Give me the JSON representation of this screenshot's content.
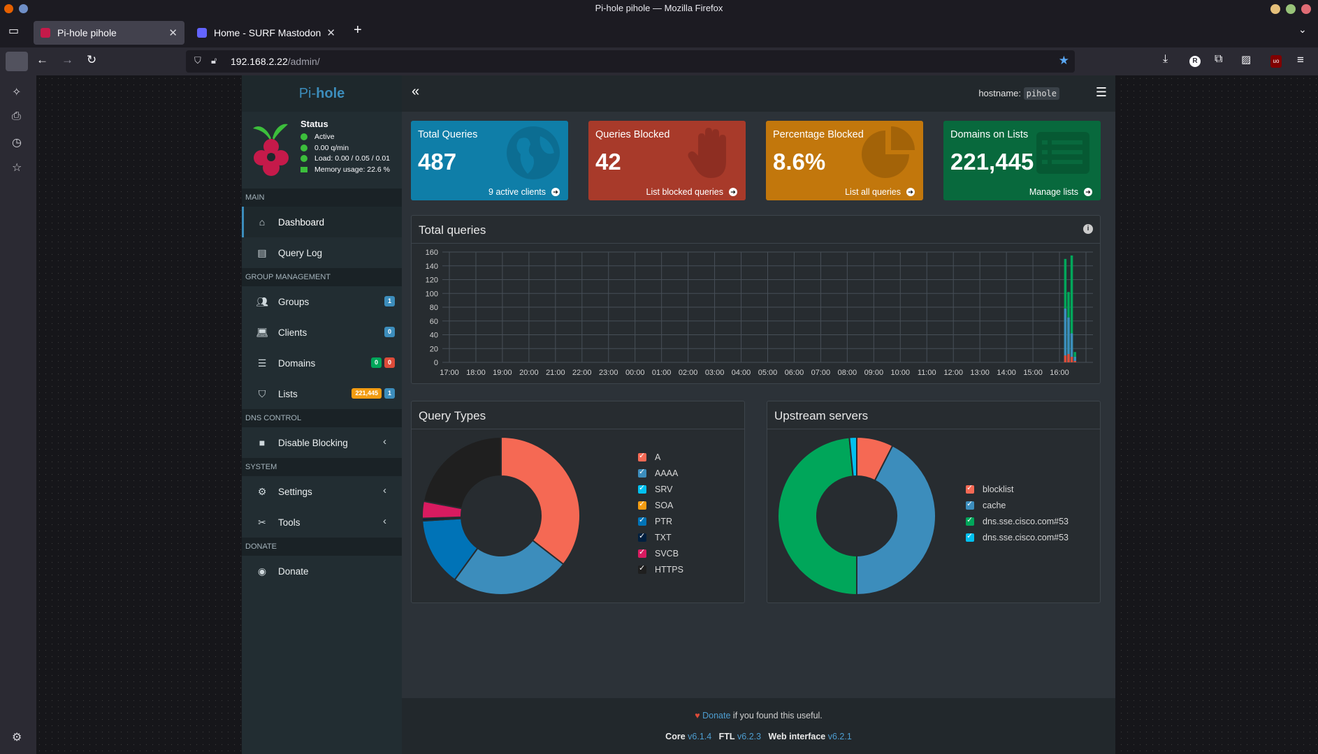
{
  "window": {
    "title": "Pi-hole pihole — Mozilla Firefox"
  },
  "tabs": [
    {
      "label": "Pi-hole pihole"
    },
    {
      "label": "Home - SURF Mastodon"
    }
  ],
  "urlbar": {
    "host": "192.168.2.22",
    "path": "/admin/"
  },
  "sidebar": {
    "brand_a": "Pi-",
    "brand_b": "hole",
    "status": {
      "title": "Status",
      "active": "Active",
      "rate": "0.00 q/min",
      "load": "Load: 0.00 / 0.05 / 0.01",
      "memory": "Memory usage: 22.6 %"
    },
    "sections": {
      "main": "MAIN",
      "group": "GROUP MANAGEMENT",
      "dns": "DNS CONTROL",
      "system": "SYSTEM",
      "donate": "DONATE"
    },
    "items": {
      "dashboard": "Dashboard",
      "querylog": "Query Log",
      "groups": "Groups",
      "clients": "Clients",
      "domains": "Domains",
      "lists": "Lists",
      "disable": "Disable Blocking",
      "settings": "Settings",
      "tools": "Tools",
      "donate": "Donate"
    },
    "badges": {
      "groups": "1",
      "clients": "0",
      "domains_allow": "0",
      "domains_deny": "0",
      "lists_domains": "221,445",
      "lists_count": "1"
    }
  },
  "topbar": {
    "hostname_label": "hostname:",
    "hostname": "pihole"
  },
  "stats": [
    {
      "title": "Total Queries",
      "value": "487",
      "link": "9 active clients",
      "color": "#00a7d0"
    },
    {
      "title": "Queries Blocked",
      "value": "42",
      "link": "List blocked queries",
      "color": "#dd4b39"
    },
    {
      "title": "Percentage Blocked",
      "value": "8.6%",
      "link": "List all queries",
      "color": "#f39c12"
    },
    {
      "title": "Domains on Lists",
      "value": "221,445",
      "link": "Manage lists",
      "color": "#00a65a"
    }
  ],
  "total_queries_panel": {
    "title": "Total queries"
  },
  "query_types_panel": {
    "title": "Query Types"
  },
  "upstream_panel": {
    "title": "Upstream servers"
  },
  "chart_data": [
    {
      "type": "bar",
      "title": "Total queries",
      "x": [
        "17:00",
        "18:00",
        "19:00",
        "20:00",
        "21:00",
        "22:00",
        "23:00",
        "00:00",
        "01:00",
        "02:00",
        "03:00",
        "04:00",
        "05:00",
        "06:00",
        "07:00",
        "08:00",
        "09:00",
        "10:00",
        "11:00",
        "12:00",
        "13:00",
        "14:00",
        "15:00",
        "16:00"
      ],
      "ylim": [
        0,
        160
      ],
      "yticks": [
        0,
        20,
        40,
        60,
        80,
        100,
        120,
        140,
        160
      ],
      "grid": true,
      "series": [
        {
          "values_last_bins": [
            0,
            150,
            102,
            155,
            15
          ],
          "color": "#00a65a"
        },
        {
          "values_last_bins": [
            0,
            78,
            65,
            42,
            8
          ],
          "color": "#3c8dbc"
        },
        {
          "values_last_bins": [
            0,
            10,
            12,
            8,
            2
          ],
          "color": "#dd4b39"
        }
      ]
    },
    {
      "type": "pie",
      "title": "Query Types",
      "labels": [
        "A",
        "AAAA",
        "SRV",
        "SOA",
        "PTR",
        "TXT",
        "SVCB",
        "HTTPS"
      ],
      "colors": [
        "#f56954",
        "#3c8dbc",
        "#00c0ef",
        "#f39c12",
        "#0073b7",
        "#001f3f",
        "#d81b60",
        "#1f1f1f"
      ],
      "values": [
        35.5,
        24.5,
        0,
        0,
        14,
        0.5,
        3.5,
        22
      ]
    },
    {
      "type": "pie",
      "title": "Upstream servers",
      "labels": [
        "blocklist",
        "cache",
        "dns.sse.cisco.com#53",
        "dns.sse.cisco.com#53"
      ],
      "colors": [
        "#f56954",
        "#3c8dbc",
        "#00a65a",
        "#00c0ef"
      ],
      "values": [
        7.5,
        42.5,
        48.5,
        1.5
      ]
    }
  ],
  "footer": {
    "donate": "Donate",
    "rest": " if you found this useful.",
    "core_label": "Core",
    "core_ver": "v6.1.4",
    "ftl_label": "FTL",
    "ftl_ver": "v6.2.3",
    "web_label": "Web interface",
    "web_ver": "v6.2.1"
  }
}
